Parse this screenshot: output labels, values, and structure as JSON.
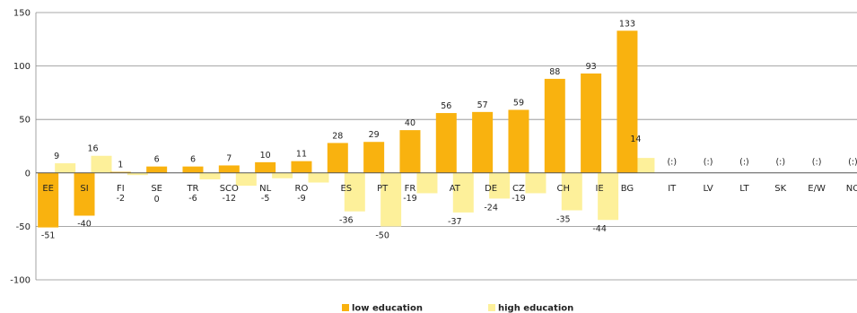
{
  "chart_data": {
    "type": "bar",
    "categories": [
      "EE",
      "SI",
      "FI",
      "SE",
      "TR",
      "SCO",
      "NL",
      "RO",
      "ES",
      "PT",
      "FR",
      "AT",
      "DE",
      "CZ",
      "CH",
      "IE",
      "BG",
      "IT",
      "LV",
      "LT",
      "SK",
      "E/W",
      "NO"
    ],
    "series": [
      {
        "name": "low education",
        "color": "#f9b20f",
        "values": [
          -51,
          -40,
          1,
          6,
          6,
          7,
          10,
          11,
          28,
          29,
          40,
          56,
          57,
          59,
          88,
          93,
          133,
          null,
          null,
          null,
          null,
          null,
          null
        ]
      },
      {
        "name": "high education",
        "color": "#fdf09a",
        "values": [
          9,
          16,
          -2,
          0,
          -6,
          -12,
          -5,
          -9,
          -36,
          -50,
          -19,
          -37,
          -24,
          -19,
          -35,
          -44,
          14,
          null,
          null,
          null,
          null,
          null,
          null
        ]
      }
    ],
    "missing_label": "(:)",
    "ylim": [
      -100,
      150
    ],
    "yticks": [
      150,
      100,
      50,
      0,
      -50,
      -100
    ],
    "grid": true,
    "legend": "bottom-center",
    "title": "",
    "xlabel": "",
    "ylabel": ""
  }
}
